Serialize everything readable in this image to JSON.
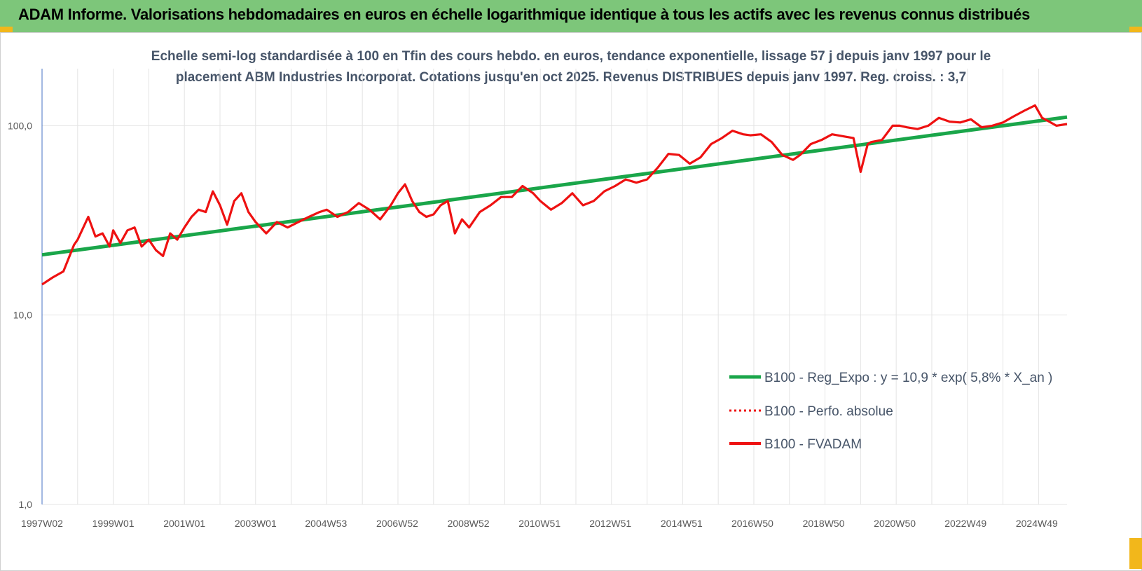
{
  "header": {
    "title": "ADAM Informe. Valorisations hebdomadaires en euros en échelle logarithmique identique à tous les actifs avec les revenus connus distribués"
  },
  "colors": {
    "banner": "#7dc67a",
    "corner": "#f2b71b",
    "trend": "#1aa64a",
    "series": "#ee1111",
    "subtitle": "#475569"
  },
  "chart_data": {
    "type": "line",
    "title": "Echelle semi-log standardisée à 100 en Tfin des cours hebdo. en euros, tendance exponentielle, lissage 57 j depuis janv 1997 pour le placement ABM Industries Incorporat. Cotations jusqu'en oct 2025. Revenus DISTRIBUES depuis janv 1997. Reg. croiss. : 3,7",
    "title_line1": "Echelle semi-log standardisée à 100 en Tfin des cours hebdo. en euros, tendance exponentielle, lissage 57 j depuis janv 1997 pour le",
    "title_line2": "placement ABM Industries Incorporat. Cotations jusqu'en oct 2025. Revenus DISTRIBUES depuis janv 1997. Reg. croiss. : 3,7",
    "y_scale": "log",
    "ylim": [
      1,
      200
    ],
    "y_ticks": [
      {
        "value": 1,
        "label": "1,0"
      },
      {
        "value": 10,
        "label": "10,0"
      },
      {
        "value": 100,
        "label": "100,0"
      }
    ],
    "xlim": [
      1997.0,
      2025.8
    ],
    "x_ticks": [
      {
        "value": 1997.0,
        "label": "1997W02"
      },
      {
        "value": 1999.0,
        "label": "1999W01"
      },
      {
        "value": 2001.0,
        "label": "2001W01"
      },
      {
        "value": 2003.0,
        "label": "2003W01"
      },
      {
        "value": 2004.98,
        "label": "2004W53"
      },
      {
        "value": 2006.98,
        "label": "2006W52"
      },
      {
        "value": 2008.98,
        "label": "2008W52"
      },
      {
        "value": 2010.98,
        "label": "2010W51"
      },
      {
        "value": 2012.97,
        "label": "2012W51"
      },
      {
        "value": 2014.97,
        "label": "2014W51"
      },
      {
        "value": 2016.96,
        "label": "2016W50"
      },
      {
        "value": 2018.96,
        "label": "2018W50"
      },
      {
        "value": 2020.96,
        "label": "2020W50"
      },
      {
        "value": 2022.95,
        "label": "2022W49"
      },
      {
        "value": 2024.95,
        "label": "2024W49"
      }
    ],
    "grid": true,
    "legend_position": "bottom-right",
    "series": [
      {
        "name": "B100 - Reg_Expo : y = 10,9 * exp( 5,8% *  X_an )",
        "style": "solid-green",
        "x": [
          1997.0,
          2025.8
        ],
        "y": [
          20.8,
          111
        ]
      },
      {
        "name": "B100 - Perfo. absolue",
        "style": "dotted-red",
        "x": [],
        "y": []
      },
      {
        "name": "B100 - FVADAM",
        "style": "solid-red",
        "x": [
          1997.0,
          1997.3,
          1997.6,
          1997.9,
          1998.0,
          1998.3,
          1998.5,
          1998.7,
          1998.9,
          1999.0,
          1999.2,
          1999.4,
          1999.6,
          1999.8,
          2000.0,
          2000.2,
          2000.4,
          2000.6,
          2000.8,
          2001.0,
          2001.2,
          2001.4,
          2001.6,
          2001.8,
          2002.0,
          2002.2,
          2002.4,
          2002.6,
          2002.8,
          2003.0,
          2003.3,
          2003.6,
          2003.9,
          2004.2,
          2004.5,
          2004.8,
          2005.0,
          2005.3,
          2005.6,
          2005.9,
          2006.2,
          2006.5,
          2006.8,
          2007.0,
          2007.2,
          2007.4,
          2007.6,
          2007.8,
          2008.0,
          2008.2,
          2008.4,
          2008.6,
          2008.8,
          2009.0,
          2009.3,
          2009.6,
          2009.9,
          2010.2,
          2010.5,
          2010.8,
          2011.0,
          2011.3,
          2011.6,
          2011.9,
          2012.2,
          2012.5,
          2012.8,
          2013.1,
          2013.4,
          2013.7,
          2014.0,
          2014.3,
          2014.6,
          2014.9,
          2015.2,
          2015.5,
          2015.8,
          2016.1,
          2016.4,
          2016.7,
          2016.9,
          2017.2,
          2017.5,
          2017.8,
          2018.1,
          2018.3,
          2018.6,
          2018.9,
          2019.2,
          2019.5,
          2019.8,
          2020.0,
          2020.2,
          2020.3,
          2020.6,
          2020.9,
          2021.1,
          2021.3,
          2021.6,
          2021.9,
          2022.2,
          2022.5,
          2022.8,
          2023.1,
          2023.4,
          2023.7,
          2024.0,
          2024.3,
          2024.6,
          2024.9,
          2025.1,
          2025.3,
          2025.5,
          2025.8
        ],
        "y": [
          14.5,
          15.8,
          17,
          23.5,
          25,
          33,
          26,
          27,
          23,
          28,
          24,
          28,
          29,
          23,
          25,
          22,
          20.5,
          27,
          25,
          29,
          33,
          36,
          35,
          45,
          38,
          30,
          40,
          44,
          35,
          31,
          27,
          31,
          29,
          31,
          33,
          35,
          36,
          33,
          35,
          39,
          36,
          32,
          38,
          44,
          49,
          40,
          35,
          33,
          34,
          38,
          40,
          27,
          32,
          29,
          35,
          38,
          42,
          42,
          48,
          44,
          40,
          36,
          39,
          44,
          38,
          40,
          45,
          48,
          52,
          50,
          52,
          60,
          71,
          70,
          63,
          68,
          80,
          86,
          94,
          90,
          89,
          90,
          82,
          70,
          66,
          70,
          80,
          84,
          90,
          88,
          86,
          57,
          80,
          82,
          84,
          100,
          100,
          98,
          96,
          100,
          110,
          105,
          104,
          108,
          98,
          100,
          104,
          112,
          120,
          128,
          110,
          105,
          100,
          102
        ]
      }
    ]
  }
}
